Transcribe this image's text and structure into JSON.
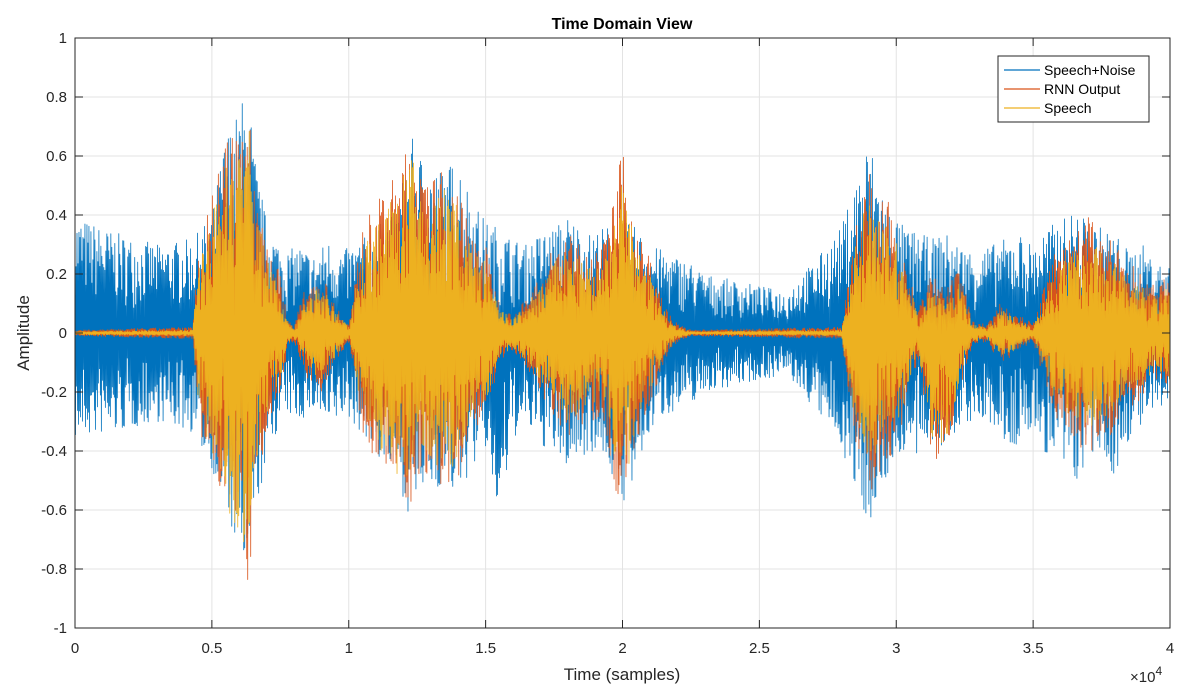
{
  "chart_data": {
    "type": "line",
    "title": "Time Domain View",
    "xlabel": "Time (samples)",
    "ylabel": "Amplitude",
    "xlim": [
      0,
      40000
    ],
    "ylim": [
      -1,
      1
    ],
    "x_tick_labels": [
      "0",
      "0.5",
      "1",
      "1.5",
      "2",
      "2.5",
      "3",
      "3.5",
      "4"
    ],
    "x_tick_values": [
      0,
      5000,
      10000,
      15000,
      20000,
      25000,
      30000,
      35000,
      40000
    ],
    "x_exponent_label": {
      "base": "×10",
      "exp": "4"
    },
    "y_tick_labels": [
      "-1",
      "-0.8",
      "-0.6",
      "-0.4",
      "-0.2",
      "0",
      "0.2",
      "0.4",
      "0.6",
      "0.8",
      "1"
    ],
    "y_tick_values": [
      -1,
      -0.8,
      -0.6,
      -0.4,
      -0.2,
      0,
      0.2,
      0.4,
      0.6,
      0.8,
      1
    ],
    "grid": true,
    "legend_position": "top-right",
    "series": [
      {
        "name": "Speech+Noise",
        "color": "#0072BD",
        "envelope": {
          "x": [
            0,
            1500,
            3000,
            4300,
            5000,
            5500,
            6000,
            6300,
            6600,
            7000,
            7500,
            7800,
            8200,
            8800,
            9200,
            9800,
            10500,
            11000,
            11800,
            12200,
            12800,
            13500,
            14000,
            14500,
            15000,
            15500,
            16000,
            16500,
            17000,
            17500,
            18000,
            18800,
            19300,
            20000,
            20500,
            21000,
            21500,
            22000,
            22500,
            23000,
            24000,
            25000,
            26000,
            26500,
            27000,
            27500,
            28000,
            28500,
            29000,
            29300,
            29800,
            30300,
            30800,
            31300,
            31800,
            32300,
            32800,
            33500,
            34000,
            34500,
            35000,
            35500,
            36000,
            36500,
            37000,
            37500,
            38000,
            38500,
            39000,
            39500,
            40000
          ],
          "upper": [
            0.4,
            0.34,
            0.3,
            0.32,
            0.4,
            0.68,
            0.76,
            0.86,
            0.58,
            0.38,
            0.3,
            0.28,
            0.3,
            0.26,
            0.32,
            0.28,
            0.32,
            0.36,
            0.42,
            0.68,
            0.58,
            0.56,
            0.6,
            0.46,
            0.38,
            0.36,
            0.32,
            0.3,
            0.34,
            0.36,
            0.4,
            0.34,
            0.36,
            0.38,
            0.36,
            0.3,
            0.28,
            0.26,
            0.24,
            0.2,
            0.18,
            0.16,
            0.14,
            0.2,
            0.24,
            0.3,
            0.36,
            0.52,
            0.66,
            0.56,
            0.42,
            0.36,
            0.34,
            0.32,
            0.34,
            0.3,
            0.28,
            0.3,
            0.32,
            0.34,
            0.3,
            0.36,
            0.38,
            0.42,
            0.38,
            0.36,
            0.34,
            0.28,
            0.3,
            0.24,
            0.22
          ],
          "lower": [
            -0.36,
            -0.34,
            -0.3,
            -0.34,
            -0.46,
            -0.62,
            -0.76,
            -0.9,
            -0.62,
            -0.44,
            -0.3,
            -0.28,
            -0.3,
            -0.26,
            -0.34,
            -0.28,
            -0.34,
            -0.42,
            -0.5,
            -0.62,
            -0.54,
            -0.52,
            -0.56,
            -0.46,
            -0.4,
            -0.66,
            -0.36,
            -0.32,
            -0.38,
            -0.42,
            -0.46,
            -0.4,
            -0.42,
            -0.58,
            -0.52,
            -0.34,
            -0.28,
            -0.26,
            -0.24,
            -0.2,
            -0.18,
            -0.16,
            -0.14,
            -0.2,
            -0.26,
            -0.32,
            -0.38,
            -0.56,
            -0.64,
            -0.6,
            -0.46,
            -0.4,
            -0.44,
            -0.36,
            -0.42,
            -0.32,
            -0.3,
            -0.32,
            -0.38,
            -0.4,
            -0.32,
            -0.42,
            -0.46,
            -0.52,
            -0.44,
            -0.42,
            -0.5,
            -0.36,
            -0.32,
            -0.28,
            -0.24
          ]
        }
      },
      {
        "name": "RNN Output",
        "color": "#D95319",
        "envelope": {
          "x": [
            0,
            4300,
            4500,
            5000,
            5500,
            6000,
            6300,
            6600,
            7000,
            7500,
            7800,
            8000,
            8500,
            9000,
            9500,
            10000,
            10500,
            11000,
            11500,
            12000,
            12300,
            12800,
            13500,
            14000,
            14500,
            15000,
            15500,
            16000,
            16500,
            17000,
            17500,
            18000,
            18800,
            19300,
            20000,
            20500,
            21000,
            21500,
            22000,
            22500,
            28000,
            28500,
            29000,
            29300,
            29800,
            30300,
            30800,
            31300,
            31800,
            32300,
            32800,
            33300,
            33800,
            34300,
            35000,
            35800,
            36300,
            37000,
            37500,
            38000,
            38500,
            39000,
            39500,
            40000
          ],
          "upper": [
            0.01,
            0.02,
            0.3,
            0.48,
            0.64,
            0.7,
            0.82,
            0.5,
            0.34,
            0.2,
            0.04,
            0.03,
            0.18,
            0.2,
            0.1,
            0.03,
            0.36,
            0.44,
            0.5,
            0.6,
            0.66,
            0.5,
            0.56,
            0.5,
            0.34,
            0.3,
            0.1,
            0.06,
            0.12,
            0.2,
            0.3,
            0.34,
            0.28,
            0.3,
            0.62,
            0.36,
            0.26,
            0.1,
            0.03,
            0.01,
            0.02,
            0.36,
            0.56,
            0.46,
            0.44,
            0.28,
            0.08,
            0.2,
            0.14,
            0.22,
            0.04,
            0.03,
            0.1,
            0.08,
            0.03,
            0.28,
            0.32,
            0.4,
            0.34,
            0.3,
            0.24,
            0.2,
            0.16,
            0.2
          ],
          "lower": [
            -0.01,
            -0.02,
            -0.3,
            -0.5,
            -0.66,
            -0.72,
            -0.9,
            -0.54,
            -0.36,
            -0.2,
            -0.04,
            -0.03,
            -0.16,
            -0.2,
            -0.1,
            -0.03,
            -0.34,
            -0.44,
            -0.52,
            -0.56,
            -0.58,
            -0.48,
            -0.54,
            -0.5,
            -0.34,
            -0.3,
            -0.1,
            -0.06,
            -0.12,
            -0.2,
            -0.3,
            -0.36,
            -0.3,
            -0.3,
            -0.66,
            -0.38,
            -0.26,
            -0.1,
            -0.03,
            -0.01,
            -0.02,
            -0.36,
            -0.58,
            -0.48,
            -0.44,
            -0.3,
            -0.08,
            -0.42,
            -0.44,
            -0.22,
            -0.04,
            -0.03,
            -0.1,
            -0.08,
            -0.03,
            -0.3,
            -0.34,
            -0.42,
            -0.36,
            -0.34,
            -0.26,
            -0.22,
            -0.16,
            -0.2
          ]
        }
      },
      {
        "name": "Speech",
        "color": "#EDB120",
        "envelope": {
          "x": [
            0,
            4300,
            4500,
            5000,
            5500,
            6000,
            6300,
            6600,
            7000,
            7500,
            7800,
            8000,
            8500,
            9000,
            9500,
            10000,
            10500,
            11000,
            11500,
            12000,
            12300,
            12800,
            13500,
            14000,
            14500,
            15000,
            15500,
            16000,
            16500,
            17000,
            17500,
            18000,
            18800,
            19300,
            20000,
            20500,
            21000,
            21500,
            22000,
            22500,
            28000,
            28500,
            29000,
            29300,
            29800,
            30300,
            30800,
            31300,
            31800,
            32300,
            32800,
            33300,
            33800,
            34300,
            35000,
            35800,
            36300,
            37000,
            37500,
            38000,
            38500,
            39000,
            39500,
            40000
          ],
          "upper": [
            0.005,
            0.01,
            0.24,
            0.4,
            0.58,
            0.66,
            0.78,
            0.42,
            0.28,
            0.16,
            0.03,
            0.02,
            0.14,
            0.16,
            0.08,
            0.02,
            0.3,
            0.38,
            0.44,
            0.54,
            0.6,
            0.44,
            0.5,
            0.44,
            0.28,
            0.24,
            0.08,
            0.05,
            0.1,
            0.16,
            0.24,
            0.28,
            0.22,
            0.24,
            0.52,
            0.3,
            0.2,
            0.08,
            0.02,
            0.005,
            0.01,
            0.3,
            0.48,
            0.38,
            0.36,
            0.22,
            0.06,
            0.16,
            0.1,
            0.18,
            0.03,
            0.02,
            0.08,
            0.06,
            0.02,
            0.22,
            0.26,
            0.32,
            0.28,
            0.24,
            0.18,
            0.16,
            0.12,
            0.16
          ],
          "lower": [
            -0.005,
            -0.01,
            -0.24,
            -0.42,
            -0.6,
            -0.68,
            -0.82,
            -0.46,
            -0.3,
            -0.16,
            -0.03,
            -0.02,
            -0.12,
            -0.16,
            -0.08,
            -0.02,
            -0.28,
            -0.38,
            -0.46,
            -0.5,
            -0.52,
            -0.42,
            -0.48,
            -0.44,
            -0.28,
            -0.24,
            -0.08,
            -0.05,
            -0.1,
            -0.16,
            -0.24,
            -0.3,
            -0.24,
            -0.24,
            -0.56,
            -0.32,
            -0.2,
            -0.08,
            -0.02,
            -0.005,
            -0.01,
            -0.3,
            -0.5,
            -0.4,
            -0.36,
            -0.24,
            -0.06,
            -0.36,
            -0.38,
            -0.18,
            -0.03,
            -0.02,
            -0.08,
            -0.06,
            -0.02,
            -0.24,
            -0.28,
            -0.34,
            -0.3,
            -0.28,
            -0.2,
            -0.18,
            -0.12,
            -0.16
          ]
        }
      }
    ]
  }
}
